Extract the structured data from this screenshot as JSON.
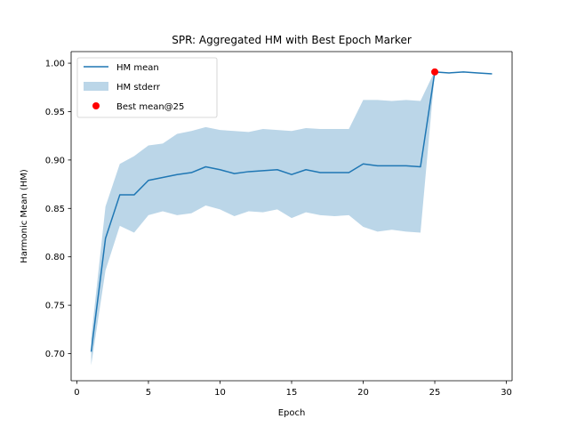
{
  "chart_data": {
    "type": "line",
    "title": "SPR: Aggregated HM with Best Epoch Marker",
    "xlabel": "Epoch",
    "ylabel": "Harmonic Mean (HM)",
    "xlim": [
      -0.4,
      30.4
    ],
    "ylim": [
      0.672,
      1.012
    ],
    "xticks": [
      0,
      5,
      10,
      15,
      20,
      25,
      30
    ],
    "yticks": [
      0.7,
      0.75,
      0.8,
      0.85,
      0.9,
      0.95,
      1.0
    ],
    "xtick_labels": [
      "0",
      "5",
      "10",
      "15",
      "20",
      "25",
      "30"
    ],
    "ytick_labels": [
      "0.70",
      "0.75",
      "0.80",
      "0.85",
      "0.90",
      "0.95",
      "1.00"
    ],
    "grid": false,
    "legend_position": "top-left",
    "series": [
      {
        "name": "HM mean",
        "kind": "line",
        "color": "#1f77b4",
        "x": [
          1,
          2,
          3,
          4,
          5,
          6,
          7,
          8,
          9,
          10,
          11,
          12,
          13,
          14,
          15,
          16,
          17,
          18,
          19,
          20,
          21,
          22,
          23,
          24,
          25,
          26,
          27,
          28,
          29
        ],
        "y": [
          0.702,
          0.819,
          0.864,
          0.864,
          0.879,
          0.882,
          0.885,
          0.887,
          0.893,
          0.89,
          0.886,
          0.888,
          0.889,
          0.89,
          0.885,
          0.89,
          0.887,
          0.887,
          0.887,
          0.896,
          0.894,
          0.894,
          0.894,
          0.893,
          0.991,
          0.99,
          0.991,
          0.99,
          0.989
        ]
      },
      {
        "name": "HM stderr",
        "kind": "band",
        "color": "#1f77b4",
        "opacity": 0.3,
        "x": [
          1,
          2,
          3,
          4,
          5,
          6,
          7,
          8,
          9,
          10,
          11,
          12,
          13,
          14,
          15,
          16,
          17,
          18,
          19,
          20,
          21,
          22,
          23,
          24,
          25,
          26,
          27,
          28,
          29
        ],
        "lower": [
          0.688,
          0.786,
          0.832,
          0.825,
          0.843,
          0.847,
          0.843,
          0.845,
          0.853,
          0.849,
          0.842,
          0.847,
          0.846,
          0.849,
          0.84,
          0.846,
          0.843,
          0.842,
          0.843,
          0.831,
          0.826,
          0.828,
          0.826,
          0.825,
          0.99,
          0.99,
          0.991,
          0.99,
          0.989
        ],
        "upper": [
          0.716,
          0.852,
          0.896,
          0.904,
          0.915,
          0.917,
          0.927,
          0.93,
          0.934,
          0.931,
          0.93,
          0.929,
          0.932,
          0.931,
          0.93,
          0.933,
          0.932,
          0.932,
          0.932,
          0.962,
          0.962,
          0.961,
          0.962,
          0.961,
          0.992,
          0.99,
          0.991,
          0.99,
          0.989
        ]
      },
      {
        "name": "Best mean@25",
        "kind": "point",
        "color": "#ff0000",
        "x": [
          25
        ],
        "y": [
          0.991
        ]
      }
    ]
  }
}
